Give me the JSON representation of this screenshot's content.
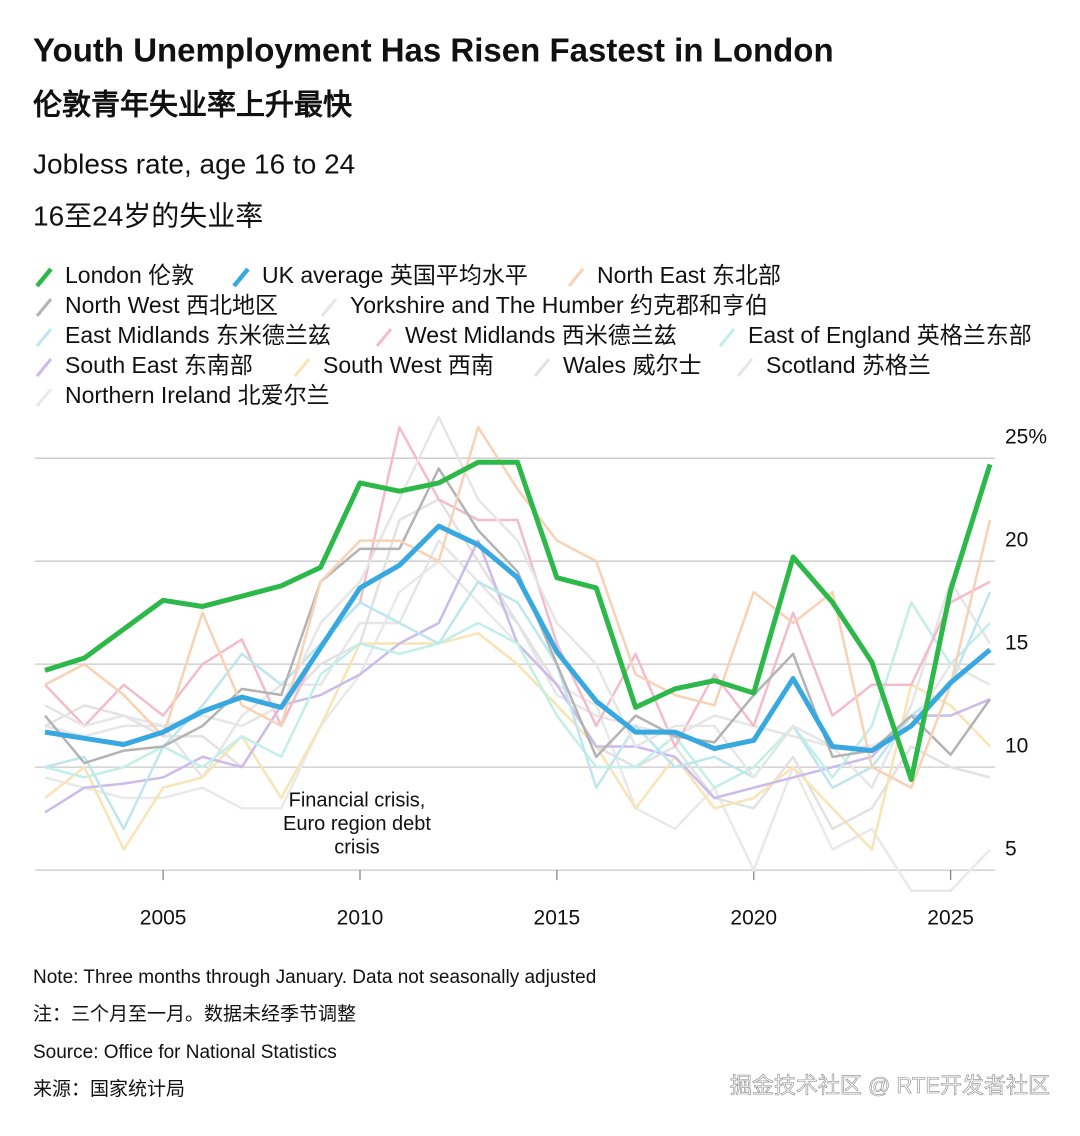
{
  "chart_data": {
    "type": "line",
    "title": "Youth Unemployment Has Risen Fastest in London",
    "title_cn": "伦敦青年失业率上升最快",
    "subtitle": "Jobless rate, age 16 to 24",
    "subtitle_cn": "16至24岁的失业率",
    "note": "Note: Three months through January. Data not seasonally adjusted",
    "note_cn": "注：三个月至一月。数据未经季节调整",
    "source": "Source: Office for National Statistics",
    "source_cn": "来源：国家统计局",
    "watermark": "掘金技术社区 @ RTE开发者社区",
    "annotation": [
      "Financial crisis,",
      "Euro region debt",
      "crisis"
    ],
    "x": [
      2002,
      2003,
      2004,
      2005,
      2006,
      2007,
      2008,
      2009,
      2010,
      2011,
      2012,
      2013,
      2014,
      2015,
      2016,
      2017,
      2018,
      2019,
      2020,
      2021,
      2022,
      2023,
      2024,
      2025,
      2026
    ],
    "xlim": [
      2002,
      2026
    ],
    "xticks": [
      2005,
      2010,
      2015,
      2020,
      2025
    ],
    "ylim": [
      3.5,
      27
    ],
    "yticks": [
      5,
      10,
      15,
      20,
      {
        "value": 25,
        "label": "25%"
      }
    ],
    "grid": true,
    "series": [
      {
        "name": "London 伦敦",
        "color": "#2db84a",
        "values": [
          14.7,
          15.3,
          16.7,
          18.1,
          17.8,
          18.3,
          18.8,
          19.7,
          23.8,
          23.4,
          23.8,
          24.8,
          24.8,
          19.2,
          18.7,
          12.9,
          13.8,
          14.2,
          13.6,
          20.2,
          18.0,
          15.1,
          9.4,
          18.6,
          24.7
        ]
      },
      {
        "name": "UK average 英国平均水平",
        "color": "#38a8e0",
        "values": [
          11.7,
          11.4,
          11.1,
          11.7,
          12.7,
          13.4,
          12.9,
          15.8,
          18.7,
          19.8,
          21.7,
          20.8,
          19.2,
          15.6,
          13.2,
          11.7,
          11.7,
          10.9,
          11.3,
          14.3,
          11.0,
          10.8,
          12.0,
          14.1,
          15.7
        ]
      },
      {
        "name": "North East 东北部",
        "color": "#f7d2b4",
        "values": [
          14,
          15,
          13.5,
          11.5,
          17.5,
          13,
          12,
          19,
          21,
          21,
          20,
          26.5,
          23.5,
          21,
          20,
          14.5,
          13.5,
          13,
          18.5,
          17,
          18.5,
          10,
          9,
          14,
          22
        ]
      },
      {
        "name": "North West 西北地区",
        "color": "#b3b3b3",
        "values": [
          12.5,
          10.2,
          10.8,
          11.0,
          12.0,
          13.8,
          13.5,
          19.0,
          20.6,
          20.6,
          24.5,
          21.5,
          19.5,
          15,
          10.5,
          12.5,
          11.5,
          11.2,
          13.5,
          15.5,
          10.5,
          10.8,
          12.5,
          10.6,
          13.3
        ]
      },
      {
        "name": "Yorkshire and The Humber 约克郡和亨伯",
        "color": "#e6e6e6",
        "values": [
          13,
          12,
          12.5,
          12,
          12.5,
          12,
          13,
          17,
          19,
          23,
          27,
          23,
          21,
          17,
          15,
          11,
          12,
          12,
          9.5,
          12,
          11,
          11,
          12,
          15,
          14
        ]
      },
      {
        "name": "East Midlands 东米德兰兹",
        "color": "#bfe6ef",
        "values": [
          10,
          10.5,
          7,
          11,
          13,
          15.5,
          14,
          16,
          18,
          17,
          16,
          19,
          18,
          15,
          9,
          12,
          10,
          10.5,
          9.5,
          12,
          9,
          10,
          12.5,
          14,
          18.5
        ]
      },
      {
        "name": "West Midlands 西米德兰兹",
        "color": "#f4bccb",
        "values": [
          14,
          12,
          14,
          12.5,
          15,
          16.2,
          12,
          16,
          18,
          26.5,
          23,
          22,
          22,
          16,
          12,
          15.5,
          11,
          14.5,
          12,
          17.5,
          12.5,
          14,
          14,
          18,
          19
        ]
      },
      {
        "name": "East of England 英格兰东部",
        "color": "#c2efe8",
        "values": [
          10,
          9.5,
          10,
          11,
          10,
          11.5,
          10.5,
          14.5,
          16,
          15.5,
          16,
          17,
          16,
          12.5,
          10,
          10,
          11.5,
          9,
          10,
          12,
          9.5,
          12,
          18,
          15,
          17
        ]
      },
      {
        "name": "South East 东南部",
        "color": "#cbbbeb",
        "values": [
          7.8,
          9,
          9.2,
          9.5,
          10.5,
          10,
          13,
          13.5,
          14.5,
          16,
          17,
          21,
          16,
          14,
          11,
          11,
          10.5,
          8.5,
          9,
          9.5,
          10,
          10.5,
          12.5,
          12.5,
          13.3
        ]
      },
      {
        "name": "South West 西南",
        "color": "#f8e4b4",
        "values": [
          8.5,
          10,
          6,
          9,
          9.5,
          11.5,
          8.5,
          12,
          16,
          16,
          16,
          16.5,
          15,
          13,
          11,
          8,
          10.5,
          8,
          8.5,
          10,
          8,
          6,
          14,
          13,
          11
        ]
      },
      {
        "name": "Wales 威尔士",
        "color": "#e2e2e2",
        "values": [
          12,
          13,
          12.5,
          11.5,
          11.5,
          10,
          13,
          15,
          16,
          22,
          23,
          20,
          17,
          14,
          11,
          10,
          11,
          8.5,
          8,
          10.5,
          7,
          8,
          11,
          10,
          9.5
        ]
      },
      {
        "name": "Scotland 苏格兰",
        "color": "#e6e6e6",
        "values": [
          12,
          11.5,
          12,
          12,
          9.5,
          12.5,
          14,
          14,
          17,
          17,
          21,
          19,
          17,
          13.5,
          12.5,
          12,
          11.5,
          12.5,
          12,
          11.5,
          11,
          9,
          13,
          19,
          16
        ]
      },
      {
        "name": "Northern Ireland 北爱尔兰",
        "color": "#e9e9e9",
        "values": [
          9.5,
          9,
          8.5,
          8.5,
          9,
          8,
          8,
          12,
          14.5,
          18.5,
          20,
          18,
          16,
          14,
          13,
          8,
          7,
          9,
          5,
          10,
          6,
          7,
          4,
          4,
          6
        ]
      }
    ]
  }
}
